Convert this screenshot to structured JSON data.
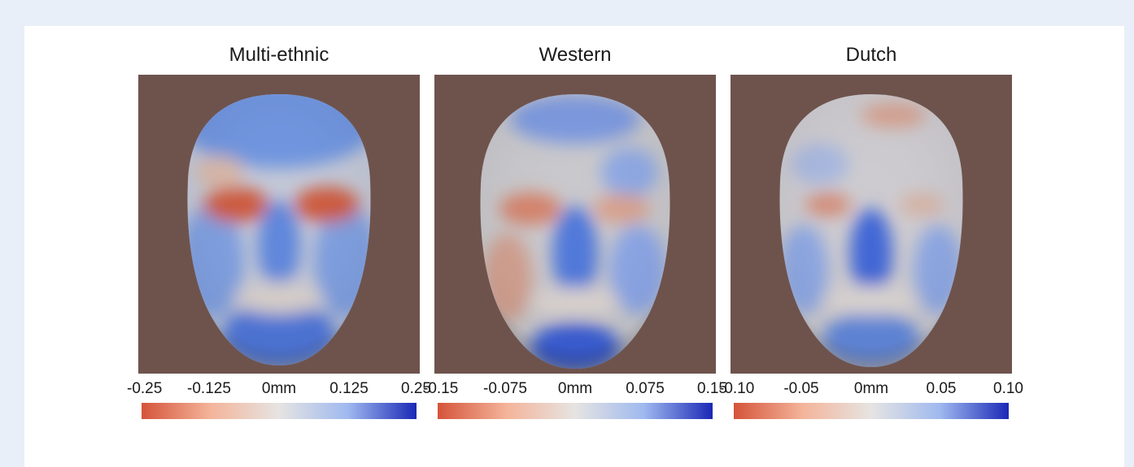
{
  "panels": [
    {
      "title": "Multi-ethnic",
      "ticks": [
        "-0.25",
        "-0.125",
        "0mm",
        "0.125",
        "0.25"
      ],
      "pattern": "multi"
    },
    {
      "title": "Western",
      "ticks": [
        "-0.15",
        "-0.075",
        "0mm",
        "0.075",
        "0.15"
      ],
      "pattern": "western"
    },
    {
      "title": "Dutch",
      "ticks": [
        "-0.10",
        "-0.05",
        "0mm",
        "0.05",
        "0.10"
      ],
      "pattern": "dutch"
    }
  ],
  "colors": {
    "page_background": "#e8eff8",
    "image_background": "#6e534d",
    "colormap": [
      "#d4543a",
      "#f4b49a",
      "#e6e4e2",
      "#9fb9ef",
      "#1a28b6"
    ]
  }
}
